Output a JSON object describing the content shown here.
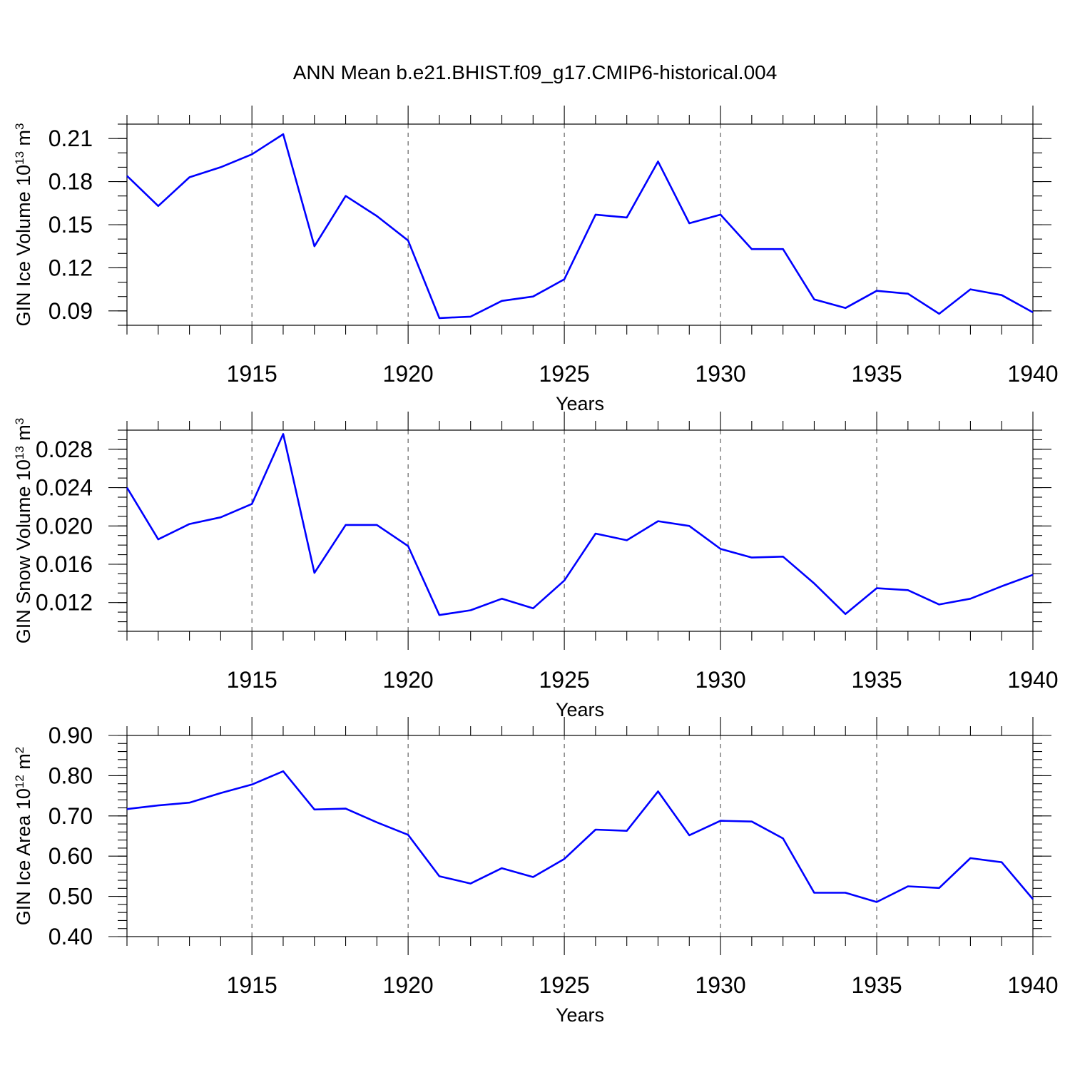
{
  "title": "ANN Mean b.e21.BHIST.f09_g17.CMIP6-historical.004",
  "colors": {
    "line": "#0000ff",
    "axis": "#000000",
    "grid": "#555555"
  },
  "chart_data": [
    {
      "type": "line",
      "xlabel": "Years",
      "ylabel": {
        "prefix": "GIN Ice Volume 10",
        "exp": "13",
        "unit": " m",
        "unit_exp": "3"
      },
      "xlim": [
        1911,
        1940
      ],
      "ylim": [
        0.08,
        0.22
      ],
      "grid": "x-dashed",
      "xticks": [
        1915,
        1920,
        1925,
        1930,
        1935,
        1940
      ],
      "xtick_labels": [
        "1915",
        "1920",
        "1925",
        "1930",
        "1935",
        "1940"
      ],
      "yticks": [
        0.09,
        0.12,
        0.15,
        0.18,
        0.21
      ],
      "ytick_labels": [
        "0.09",
        "0.12",
        "0.15",
        "0.18",
        "0.21"
      ],
      "yminor": 0.01,
      "x": [
        1911,
        1912,
        1913,
        1914,
        1915,
        1916,
        1917,
        1918,
        1919,
        1920,
        1921,
        1922,
        1923,
        1924,
        1925,
        1926,
        1927,
        1928,
        1929,
        1930,
        1931,
        1932,
        1933,
        1934,
        1935,
        1936,
        1937,
        1938,
        1939,
        1940
      ],
      "series": [
        {
          "values": [
            0.184,
            0.163,
            0.183,
            0.19,
            0.199,
            0.213,
            0.135,
            0.17,
            0.156,
            0.139,
            0.085,
            0.086,
            0.097,
            0.1,
            0.112,
            0.157,
            0.155,
            0.194,
            0.151,
            0.157,
            0.133,
            0.133,
            0.098,
            0.092,
            0.104,
            0.102,
            0.088,
            0.105,
            0.101,
            0.089
          ]
        }
      ]
    },
    {
      "type": "line",
      "xlabel": "Years",
      "ylabel": {
        "prefix": "GIN Snow Volume 10",
        "exp": "13",
        "unit": " m",
        "unit_exp": "3"
      },
      "xlim": [
        1911,
        1940
      ],
      "ylim": [
        0.009,
        0.03
      ],
      "grid": "x-dashed",
      "xticks": [
        1915,
        1920,
        1925,
        1930,
        1935,
        1940
      ],
      "xtick_labels": [
        "1915",
        "1920",
        "1925",
        "1930",
        "1935",
        "1940"
      ],
      "yticks": [
        0.012,
        0.016,
        0.02,
        0.024,
        0.028
      ],
      "ytick_labels": [
        "0.012",
        "0.016",
        "0.020",
        "0.024",
        "0.028"
      ],
      "yminor": 0.001,
      "x": [
        1911,
        1912,
        1913,
        1914,
        1915,
        1916,
        1917,
        1918,
        1919,
        1920,
        1921,
        1922,
        1923,
        1924,
        1925,
        1926,
        1927,
        1928,
        1929,
        1930,
        1931,
        1932,
        1933,
        1934,
        1935,
        1936,
        1937,
        1938,
        1939,
        1940
      ],
      "series": [
        {
          "values": [
            0.024,
            0.0186,
            0.0202,
            0.0209,
            0.0223,
            0.0296,
            0.0151,
            0.0201,
            0.0201,
            0.0179,
            0.0107,
            0.0112,
            0.0124,
            0.0114,
            0.0143,
            0.0192,
            0.0185,
            0.0205,
            0.02,
            0.0176,
            0.0167,
            0.0168,
            0.014,
            0.0108,
            0.0135,
            0.0133,
            0.0118,
            0.0124,
            0.0137,
            0.0149
          ]
        }
      ]
    },
    {
      "type": "line",
      "xlabel": "Years",
      "ylabel": {
        "prefix": "GIN Ice Area 10",
        "exp": "12",
        "unit": " m",
        "unit_exp": "2"
      },
      "xlim": [
        1911,
        1940
      ],
      "ylim": [
        0.4,
        0.9
      ],
      "grid": "x-dashed",
      "xticks": [
        1915,
        1920,
        1925,
        1930,
        1935,
        1940
      ],
      "xtick_labels": [
        "1915",
        "1920",
        "1925",
        "1930",
        "1935",
        "1940"
      ],
      "yticks": [
        0.4,
        0.5,
        0.6,
        0.7,
        0.8,
        0.9
      ],
      "ytick_labels": [
        "0.40",
        "0.50",
        "0.60",
        "0.70",
        "0.80",
        "0.90"
      ],
      "yminor": 0.02,
      "x": [
        1911,
        1912,
        1913,
        1914,
        1915,
        1916,
        1917,
        1918,
        1919,
        1920,
        1921,
        1922,
        1923,
        1924,
        1925,
        1926,
        1927,
        1928,
        1929,
        1930,
        1931,
        1932,
        1933,
        1934,
        1935,
        1936,
        1937,
        1938,
        1939,
        1940
      ],
      "series": [
        {
          "values": [
            0.717,
            0.726,
            0.733,
            0.757,
            0.778,
            0.811,
            0.716,
            0.718,
            0.684,
            0.653,
            0.55,
            0.532,
            0.57,
            0.548,
            0.593,
            0.666,
            0.663,
            0.761,
            0.652,
            0.688,
            0.686,
            0.644,
            0.509,
            0.509,
            0.486,
            0.525,
            0.521,
            0.595,
            0.585,
            0.493
          ]
        }
      ]
    }
  ]
}
